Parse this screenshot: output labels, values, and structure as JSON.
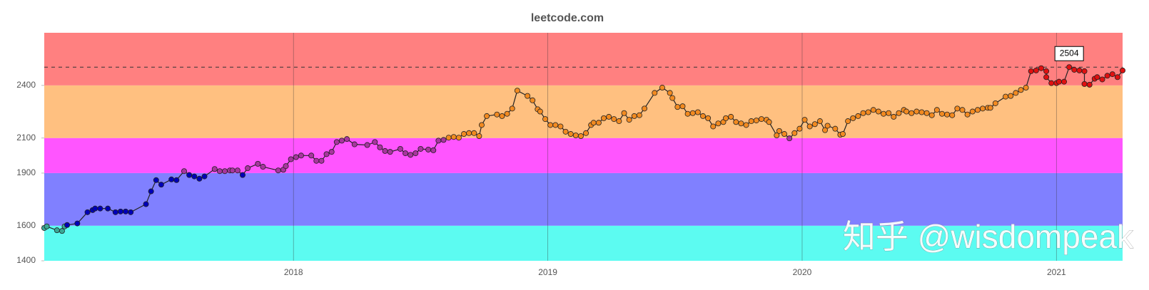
{
  "chart_data": {
    "type": "line",
    "title": "leetcode.com",
    "x": [
      2017.02,
      2017.03,
      2017.07,
      2017.09,
      2017.1,
      2017.11,
      2017.15,
      2017.19,
      2017.21,
      2017.22,
      2017.24,
      2017.27,
      2017.3,
      2017.32,
      2017.34,
      2017.36,
      2017.42,
      2017.44,
      2017.46,
      2017.48,
      2017.52,
      2017.54,
      2017.57,
      2017.59,
      2017.61,
      2017.63,
      2017.65,
      2017.69,
      2017.71,
      2017.73,
      2017.75,
      2017.76,
      2017.78,
      2017.8,
      2017.82,
      2017.86,
      2017.88,
      2017.94,
      2017.96,
      2017.97,
      2017.99,
      2018.01,
      2018.03,
      2018.07,
      2018.09,
      2018.11,
      2018.13,
      2018.15,
      2018.17,
      2018.19,
      2018.21,
      2018.24,
      2018.29,
      2018.32,
      2018.34,
      2018.36,
      2018.38,
      2018.42,
      2018.44,
      2018.46,
      2018.48,
      2018.5,
      2018.53,
      2018.55,
      2018.57,
      2018.59,
      2018.61,
      2018.63,
      2018.65,
      2018.67,
      2018.69,
      2018.71,
      2018.73,
      2018.74,
      2018.76,
      2018.8,
      2018.82,
      2018.84,
      2018.86,
      2018.88,
      2018.92,
      2018.94,
      2018.96,
      2018.97,
      2018.99,
      2019.01,
      2019.03,
      2019.05,
      2019.07,
      2019.09,
      2019.11,
      2019.13,
      2019.15,
      2019.17,
      2019.18,
      2019.2,
      2019.22,
      2019.24,
      2019.26,
      2019.28,
      2019.3,
      2019.32,
      2019.34,
      2019.36,
      2019.38,
      2019.42,
      2019.45,
      2019.48,
      2019.49,
      2019.51,
      2019.53,
      2019.55,
      2019.57,
      2019.59,
      2019.61,
      2019.63,
      2019.65,
      2019.67,
      2019.69,
      2019.7,
      2019.72,
      2019.74,
      2019.76,
      2019.78,
      2019.8,
      2019.82,
      2019.84,
      2019.86,
      2019.87,
      2019.9,
      2019.91,
      2019.93,
      2019.95,
      2019.97,
      2019.99,
      2020.01,
      2020.03,
      2020.05,
      2020.07,
      2020.09,
      2020.1,
      2020.13,
      2020.15,
      2020.16,
      2020.18,
      2020.2,
      2020.22,
      2020.24,
      2020.26,
      2020.28,
      2020.3,
      2020.32,
      2020.34,
      2020.36,
      2020.38,
      2020.4,
      2020.41,
      2020.43,
      2020.45,
      2020.47,
      2020.49,
      2020.51,
      2020.53,
      2020.55,
      2020.57,
      2020.59,
      2020.61,
      2020.63,
      2020.65,
      2020.67,
      2020.69,
      2020.71,
      2020.73,
      2020.74,
      2020.76,
      2020.8,
      2020.82,
      2020.84,
      2020.86,
      2020.88,
      2020.9,
      2020.92,
      2020.94,
      2020.96,
      2020.96,
      2020.98,
      2021.0,
      2021.01,
      2021.03,
      2021.05,
      2021.07,
      2021.09,
      2021.11,
      2021.11,
      2021.13,
      2021.15,
      2021.16,
      2021.18,
      2021.2,
      2021.22,
      2021.24,
      2021.26
    ],
    "values": [
      1587,
      1596,
      1574,
      1570,
      1596,
      1604,
      1613,
      1677,
      1689,
      1698,
      1698,
      1698,
      1677,
      1681,
      1681,
      1677,
      1723,
      1796,
      1860,
      1834,
      1864,
      1860,
      1911,
      1889,
      1881,
      1868,
      1881,
      1923,
      1911,
      1911,
      1915,
      1915,
      1915,
      1889,
      1928,
      1953,
      1936,
      1915,
      1919,
      1940,
      1979,
      1991,
      2000,
      2000,
      1970,
      1970,
      2008,
      2021,
      2077,
      2085,
      2094,
      2064,
      2060,
      2077,
      2047,
      2026,
      2021,
      2038,
      2013,
      2004,
      2013,
      2038,
      2034,
      2030,
      2085,
      2089,
      2102,
      2106,
      2102,
      2123,
      2128,
      2128,
      2111,
      2174,
      2225,
      2234,
      2225,
      2238,
      2268,
      2370,
      2340,
      2315,
      2264,
      2251,
      2208,
      2174,
      2174,
      2166,
      2136,
      2123,
      2115,
      2111,
      2128,
      2174,
      2187,
      2187,
      2213,
      2221,
      2208,
      2196,
      2242,
      2204,
      2225,
      2230,
      2268,
      2357,
      2387,
      2357,
      2328,
      2277,
      2281,
      2238,
      2242,
      2247,
      2225,
      2213,
      2166,
      2183,
      2191,
      2213,
      2221,
      2191,
      2183,
      2174,
      2196,
      2200,
      2208,
      2204,
      2191,
      2115,
      2140,
      2123,
      2098,
      2128,
      2153,
      2204,
      2166,
      2179,
      2196,
      2145,
      2170,
      2153,
      2119,
      2123,
      2196,
      2213,
      2225,
      2242,
      2247,
      2260,
      2251,
      2238,
      2242,
      2221,
      2242,
      2260,
      2251,
      2242,
      2251,
      2247,
      2242,
      2230,
      2260,
      2238,
      2234,
      2230,
      2268,
      2260,
      2234,
      2251,
      2260,
      2268,
      2272,
      2272,
      2298,
      2336,
      2340,
      2357,
      2374,
      2387,
      2481,
      2485,
      2498,
      2481,
      2447,
      2413,
      2413,
      2421,
      2421,
      2504,
      2489,
      2485,
      2481,
      2408,
      2404,
      2438,
      2447,
      2434,
      2455,
      2464,
      2447,
      2485
    ],
    "xlim": [
      2017.02,
      2021.26
    ],
    "xticks": [
      2018,
      2019,
      2020,
      2021
    ],
    "ylim": [
      1400,
      2700
    ],
    "yticks": [
      1400,
      1600,
      1900,
      2100,
      2400
    ],
    "line_color": "#222222",
    "bands": [
      {
        "from": 1400,
        "to": 1600,
        "color": "#5cfbf1",
        "point_color": "#3aa896"
      },
      {
        "from": 1600,
        "to": 1900,
        "color": "#8080ff",
        "point_color": "#0000b8"
      },
      {
        "from": 1900,
        "to": 2100,
        "color": "#ff55ff",
        "point_color": "#a8359f"
      },
      {
        "from": 2100,
        "to": 2400,
        "color": "#ffc080",
        "point_color": "#f28a20"
      },
      {
        "from": 2400,
        "to": 2700,
        "color": "#ff8080",
        "point_color": "#e01010"
      }
    ],
    "annotation": 2504,
    "watermark": "知乎 @wisdompeak"
  }
}
